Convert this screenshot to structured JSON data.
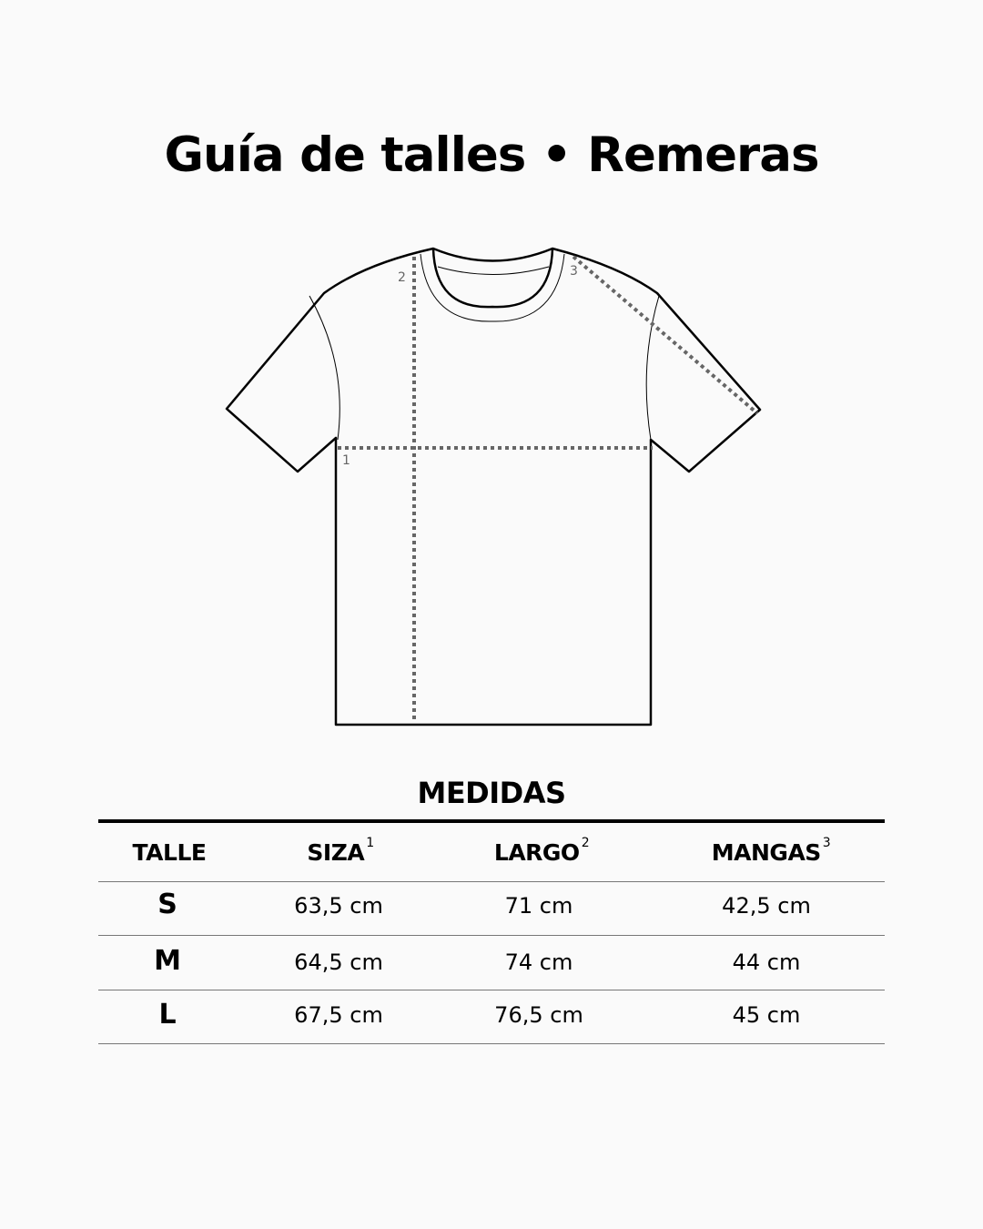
{
  "title": "Guía de talles • Remeras",
  "diagram": {
    "labels": [
      "1",
      "2",
      "3"
    ],
    "outline_color": "#000000",
    "measure_color": "#666666"
  },
  "table": {
    "title": "MEDIDAS",
    "headers": [
      {
        "label": "TALLE",
        "sup": ""
      },
      {
        "label": "SIZA",
        "sup": "1"
      },
      {
        "label": "LARGO",
        "sup": "2"
      },
      {
        "label": "MANGAS",
        "sup": "3"
      }
    ],
    "rows": [
      {
        "talle": "S",
        "siza": "63,5 cm",
        "largo": "71 cm",
        "mangas": "42,5 cm"
      },
      {
        "talle": "M",
        "siza": "64,5 cm",
        "largo": "74 cm",
        "mangas": "44 cm"
      },
      {
        "talle": "L",
        "siza": "67,5 cm",
        "largo": "76,5 cm",
        "mangas": "45 cm"
      }
    ]
  }
}
